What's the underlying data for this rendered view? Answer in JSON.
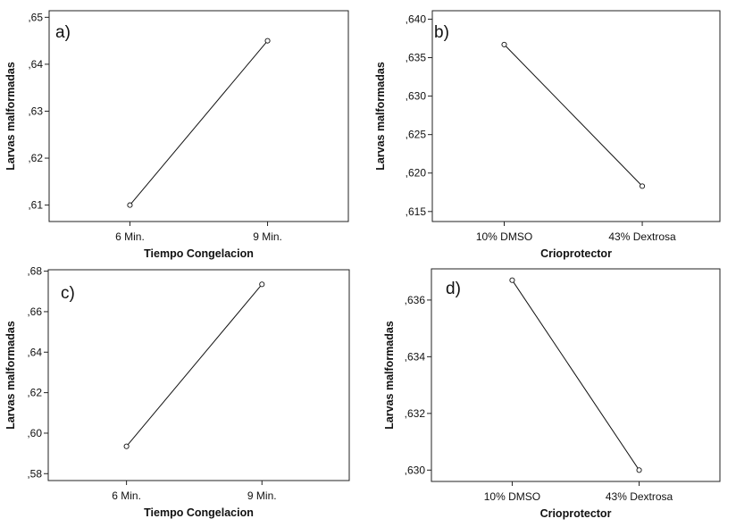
{
  "chart_data": [
    {
      "panel_label": "a)",
      "type": "line",
      "xlabel": "Tiempo Congelacion",
      "ylabel": "Larvas malformadas",
      "categories": [
        "6 Min.",
        "9 Min."
      ],
      "values": [
        0.61,
        0.645
      ],
      "yticks": [
        0.61,
        0.62,
        0.63,
        0.64,
        0.65
      ],
      "ytick_labels": [
        ",61",
        ",62",
        ",63",
        ",64",
        ",65"
      ],
      "ylim": [
        0.6065,
        0.6514
      ],
      "grid": false,
      "legend": "none"
    },
    {
      "panel_label": "b)",
      "type": "line",
      "xlabel": "Crioprotector",
      "ylabel": "Larvas malformadas",
      "categories": [
        "10% DMSO",
        "43% Dextrosa"
      ],
      "values": [
        0.6367,
        0.6183
      ],
      "yticks": [
        0.615,
        0.62,
        0.625,
        0.63,
        0.635,
        0.64
      ],
      "ytick_labels": [
        ",615",
        ",620",
        ",625",
        ",630",
        ",635",
        ",640"
      ],
      "ylim": [
        0.6137,
        0.6411
      ],
      "grid": false,
      "legend": "none"
    },
    {
      "panel_label": "c)",
      "type": "line",
      "xlabel": "Tiempo Congelacion",
      "ylabel": "Larvas malformadas",
      "categories": [
        "6 Min.",
        "9 Min."
      ],
      "values": [
        0.5935,
        0.6735
      ],
      "yticks": [
        0.58,
        0.6,
        0.62,
        0.64,
        0.66,
        0.68
      ],
      "ytick_labels": [
        ",58",
        ",60",
        ",62",
        ",64",
        ",66",
        ",68"
      ],
      "ylim": [
        0.5766,
        0.6807
      ],
      "grid": false,
      "legend": "none"
    },
    {
      "panel_label": "d)",
      "type": "line",
      "xlabel": "Crioprotector",
      "ylabel": "Larvas malformadas",
      "categories": [
        "10% DMSO",
        "43% Dextrosa"
      ],
      "values": [
        0.6367,
        0.63
      ],
      "yticks": [
        0.63,
        0.632,
        0.634,
        0.636
      ],
      "ytick_labels": [
        ",630",
        ",632",
        ",634",
        ",636"
      ],
      "ylim": [
        0.6296,
        0.6371
      ],
      "grid": false,
      "legend": "none"
    }
  ]
}
